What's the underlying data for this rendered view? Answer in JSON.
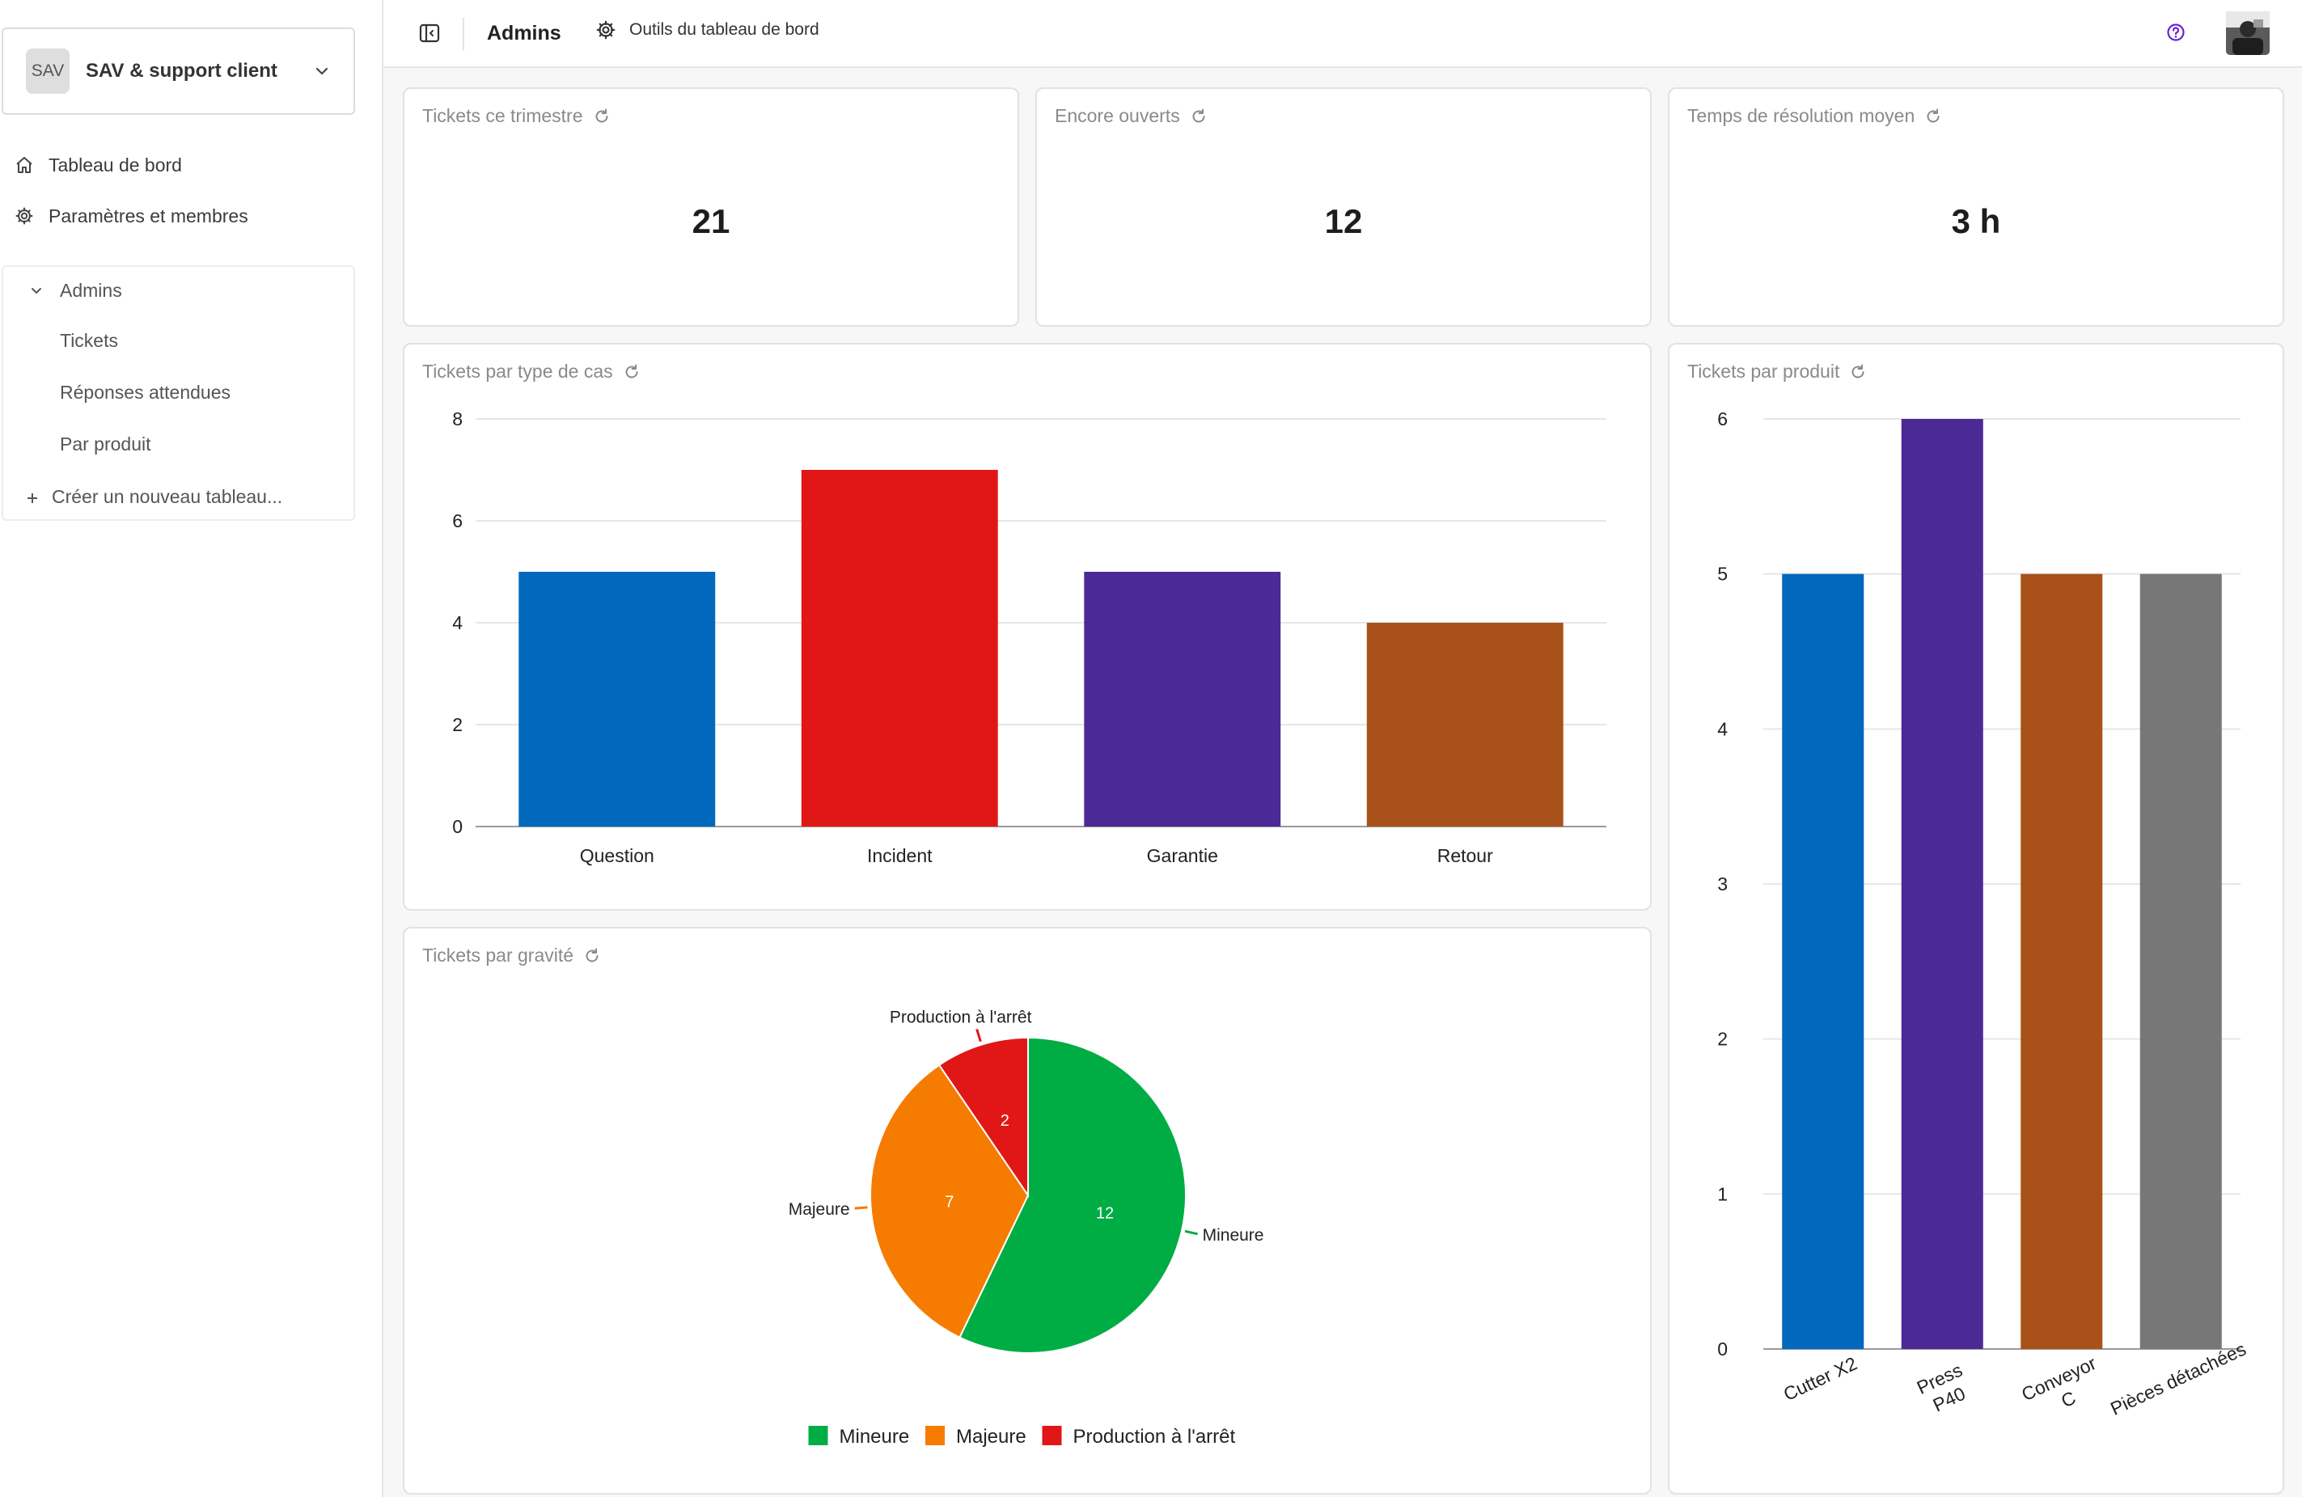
{
  "workspace": {
    "logo_text": "SAV",
    "name": "SAV & support client"
  },
  "nav": {
    "dashboard": "Tableau de bord",
    "settings": "Paramètres et membres"
  },
  "group": {
    "title": "Admins",
    "items": [
      "Tickets",
      "Réponses attendues",
      "Par produit"
    ],
    "create": "Créer un nouveau tableau..."
  },
  "topbar": {
    "title": "Admins",
    "tools": "Outils du tableau de bord"
  },
  "colors": {
    "accent": "#6b21d6"
  },
  "kpis": [
    {
      "title": "Tickets ce trimestre",
      "value": "21"
    },
    {
      "title": "Encore ouverts",
      "value": "12"
    },
    {
      "title": "Temps de résolution moyen",
      "value": "3 h"
    }
  ],
  "charts": {
    "by_type_title": "Tickets par type de cas",
    "by_product_title": "Tickets par produit",
    "by_severity_title": "Tickets par gravité"
  },
  "chart_data": [
    {
      "type": "bar",
      "title": "Tickets par type de cas",
      "categories": [
        "Question",
        "Incident",
        "Garantie",
        "Retour"
      ],
      "values": [
        5,
        7,
        5,
        4
      ],
      "colors": [
        "#0068bd",
        "#e11717",
        "#4b2a96",
        "#a8521a"
      ],
      "yticks": [
        "0",
        "2",
        "4",
        "6",
        "8"
      ],
      "ylim": [
        0,
        8
      ],
      "grid": true
    },
    {
      "type": "bar",
      "title": "Tickets par produit",
      "categories": [
        "Cutter X2",
        "Press P40",
        "Conveyor C",
        "Pièces détachées"
      ],
      "tick_lines": [
        [
          "Cutter X2"
        ],
        [
          "Press",
          "P40"
        ],
        [
          "Conveyor",
          "C"
        ],
        [
          "Pièces détachées"
        ]
      ],
      "values": [
        5,
        6,
        5,
        5
      ],
      "colors": [
        "#0068bd",
        "#4b2a96",
        "#a8521a",
        "#777777"
      ],
      "yticks": [
        "0",
        "1",
        "2",
        "3",
        "4",
        "5",
        "6"
      ],
      "ylim": [
        0,
        6
      ],
      "grid": true
    },
    {
      "type": "pie",
      "title": "Tickets par gravité",
      "labels": [
        "Mineure",
        "Majeure",
        "Production à l'arrêt"
      ],
      "values": [
        12,
        7,
        2
      ],
      "value_labels": [
        "12",
        "7",
        "2"
      ],
      "colors": [
        "#00ad45",
        "#f57c00",
        "#e11717"
      ],
      "legend": "bottom"
    }
  ]
}
